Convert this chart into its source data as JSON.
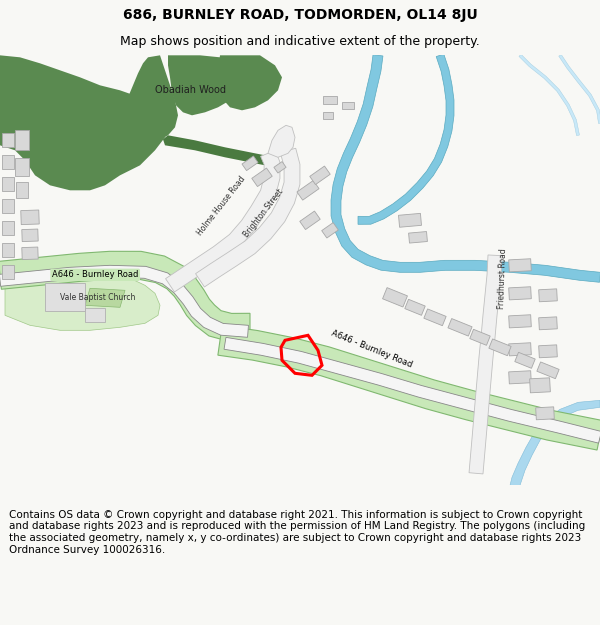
{
  "title": "686, BURNLEY ROAD, TODMORDEN, OL14 8JU",
  "subtitle": "Map shows position and indicative extent of the property.",
  "footer": "Contains OS data © Crown copyright and database right 2021. This information is subject to Crown copyright and database rights 2023 and is reproduced with the permission of HM Land Registry. The polygons (including the associated geometry, namely x, y co-ordinates) are subject to Crown copyright and database rights 2023 Ordnance Survey 100026316.",
  "bg_color": "#f8f8f5",
  "map_bg": "#ffffff",
  "wood_color": "#5a8a50",
  "road_green_fill": "#c8e8b8",
  "road_green_border": "#80b870",
  "road_dark_green": "#4a7a40",
  "road_white_fill": "#f0f0f0",
  "road_white_border": "#c0c0c0",
  "building_fill": "#d8d8d8",
  "building_border": "#b0b0b0",
  "water_main": "#80c8e0",
  "water_light": "#c0e4f0",
  "property_color": "#ff0000",
  "text_dark": "#202020",
  "title_fontsize": 10,
  "subtitle_fontsize": 9,
  "footer_fontsize": 7.5
}
